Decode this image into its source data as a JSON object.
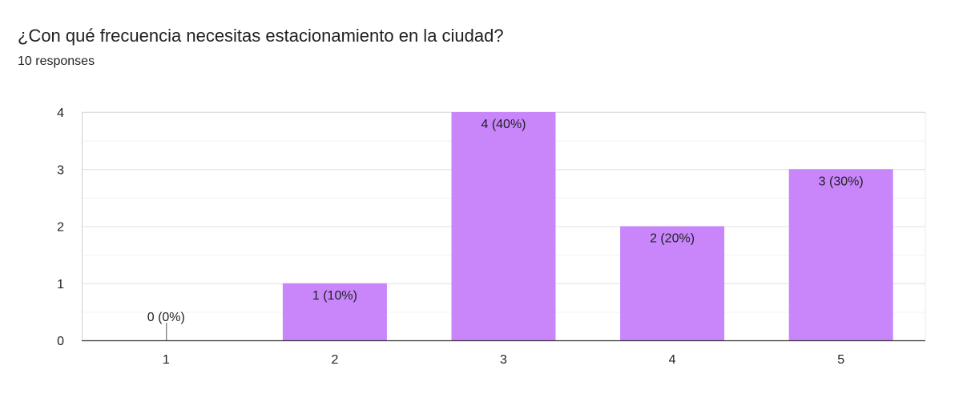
{
  "question": {
    "title": "¿Con qué frecuencia necesitas estacionamiento en la ciudad?",
    "responses_label": "10 responses"
  },
  "colors": {
    "bar": "#c886fa",
    "grid": "#e8e8e8",
    "axis": "#333333",
    "text": "#202124"
  },
  "chart_data": {
    "type": "bar",
    "title": "¿Con qué frecuencia necesitas estacionamiento en la ciudad?",
    "categories": [
      "1",
      "2",
      "3",
      "4",
      "5"
    ],
    "values": [
      0,
      1,
      4,
      2,
      3
    ],
    "data_labels": [
      "0 (0%)",
      "1 (10%)",
      "4 (40%)",
      "2 (20%)",
      "3 (30%)"
    ],
    "y_ticks": [
      "0",
      "1",
      "2",
      "3",
      "4"
    ],
    "ylim": [
      0,
      4
    ],
    "xlabel": "",
    "ylabel": "",
    "grid": true
  }
}
